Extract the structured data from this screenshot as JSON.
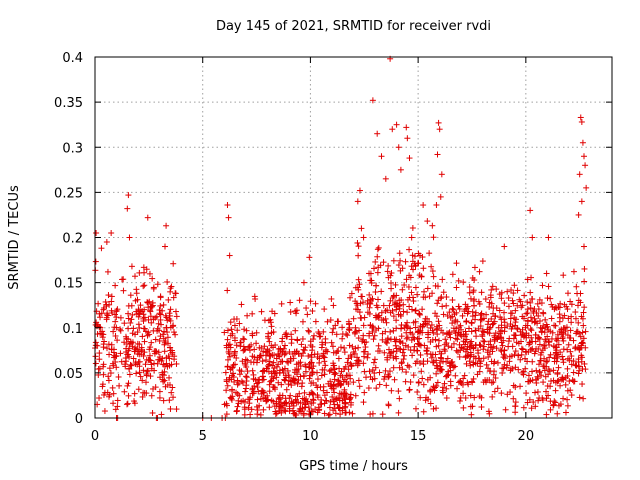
{
  "chart_data": {
    "type": "scatter",
    "title": "Day 145 of 2021, SRMTID for receiver rvdi",
    "xlabel": "GPS time / hours",
    "ylabel": "SRMTID / TECUs",
    "xlim": [
      0,
      24
    ],
    "ylim": [
      0,
      0.4
    ],
    "xticks": [
      0,
      5,
      10,
      15,
      20
    ],
    "xtick_labels": [
      "0",
      "5",
      "10",
      "15",
      "20"
    ],
    "yticks": [
      0,
      0.05,
      0.1,
      0.15,
      0.2,
      0.25,
      0.3,
      0.35,
      0.4
    ],
    "ytick_labels": [
      "0",
      "0.05",
      "0.1",
      "0.15",
      "0.2",
      "0.25",
      "0.3",
      "0.35",
      "0.4"
    ],
    "grid": true,
    "marker": "plus",
    "series": [
      {
        "name": "SRMTID",
        "color": "#e00000",
        "segments": [
          {
            "x_start": 0.0,
            "x_end": 3.8,
            "base": 0.085,
            "spread": 0.045,
            "n": 380
          },
          {
            "x_start": 6.0,
            "x_end": 9.0,
            "base": 0.055,
            "spread": 0.04,
            "n": 320
          },
          {
            "x_start": 9.0,
            "x_end": 12.0,
            "base": 0.05,
            "spread": 0.045,
            "n": 340
          },
          {
            "x_start": 12.0,
            "x_end": 15.8,
            "base": 0.1,
            "spread": 0.06,
            "n": 400
          },
          {
            "x_start": 15.8,
            "x_end": 19.5,
            "base": 0.085,
            "spread": 0.045,
            "n": 400
          },
          {
            "x_start": 19.5,
            "x_end": 22.8,
            "base": 0.08,
            "spread": 0.045,
            "n": 360
          }
        ],
        "outliers": [
          {
            "x": 0.05,
            "y": 0.205
          },
          {
            "x": 0.55,
            "y": 0.195
          },
          {
            "x": 0.75,
            "y": 0.205
          },
          {
            "x": 1.5,
            "y": 0.232
          },
          {
            "x": 1.55,
            "y": 0.247
          },
          {
            "x": 1.6,
            "y": 0.2
          },
          {
            "x": 2.45,
            "y": 0.222
          },
          {
            "x": 3.3,
            "y": 0.213
          },
          {
            "x": 3.25,
            "y": 0.19
          },
          {
            "x": 6.15,
            "y": 0.236
          },
          {
            "x": 6.2,
            "y": 0.222
          },
          {
            "x": 6.25,
            "y": 0.18
          },
          {
            "x": 9.95,
            "y": 0.178
          },
          {
            "x": 9.7,
            "y": 0.15
          },
          {
            "x": 12.2,
            "y": 0.24
          },
          {
            "x": 12.3,
            "y": 0.252
          },
          {
            "x": 12.9,
            "y": 0.352
          },
          {
            "x": 13.1,
            "y": 0.315
          },
          {
            "x": 13.3,
            "y": 0.29
          },
          {
            "x": 13.5,
            "y": 0.265
          },
          {
            "x": 13.7,
            "y": 0.398
          },
          {
            "x": 13.8,
            "y": 0.32
          },
          {
            "x": 14.0,
            "y": 0.325
          },
          {
            "x": 14.1,
            "y": 0.3
          },
          {
            "x": 14.2,
            "y": 0.275
          },
          {
            "x": 14.45,
            "y": 0.322
          },
          {
            "x": 14.5,
            "y": 0.31
          },
          {
            "x": 14.6,
            "y": 0.288
          },
          {
            "x": 14.7,
            "y": 0.2
          },
          {
            "x": 15.95,
            "y": 0.327
          },
          {
            "x": 16.0,
            "y": 0.32
          },
          {
            "x": 15.9,
            "y": 0.292
          },
          {
            "x": 16.05,
            "y": 0.245
          },
          {
            "x": 15.85,
            "y": 0.236
          },
          {
            "x": 16.1,
            "y": 0.27
          },
          {
            "x": 19.0,
            "y": 0.19
          },
          {
            "x": 20.2,
            "y": 0.23
          },
          {
            "x": 20.3,
            "y": 0.2
          },
          {
            "x": 21.05,
            "y": 0.2
          },
          {
            "x": 22.55,
            "y": 0.333
          },
          {
            "x": 22.6,
            "y": 0.328
          },
          {
            "x": 22.65,
            "y": 0.305
          },
          {
            "x": 22.7,
            "y": 0.29
          },
          {
            "x": 22.75,
            "y": 0.28
          },
          {
            "x": 22.5,
            "y": 0.27
          },
          {
            "x": 22.8,
            "y": 0.255
          },
          {
            "x": 22.6,
            "y": 0.24
          },
          {
            "x": 22.45,
            "y": 0.225
          },
          {
            "x": 22.7,
            "y": 0.19
          }
        ],
        "zero_points": [
          {
            "x": 1.0,
            "y": 0.0
          },
          {
            "x": 2.85,
            "y": 0.0
          },
          {
            "x": 5.9,
            "y": 0.0
          },
          {
            "x": 6.05,
            "y": 0.0
          },
          {
            "x": 5.0,
            "y": 0.0
          },
          {
            "x": 5.4,
            "y": 0.0
          },
          {
            "x": 1.05,
            "y": 0.0
          },
          {
            "x": 2.9,
            "y": 0.0
          }
        ]
      }
    ]
  }
}
